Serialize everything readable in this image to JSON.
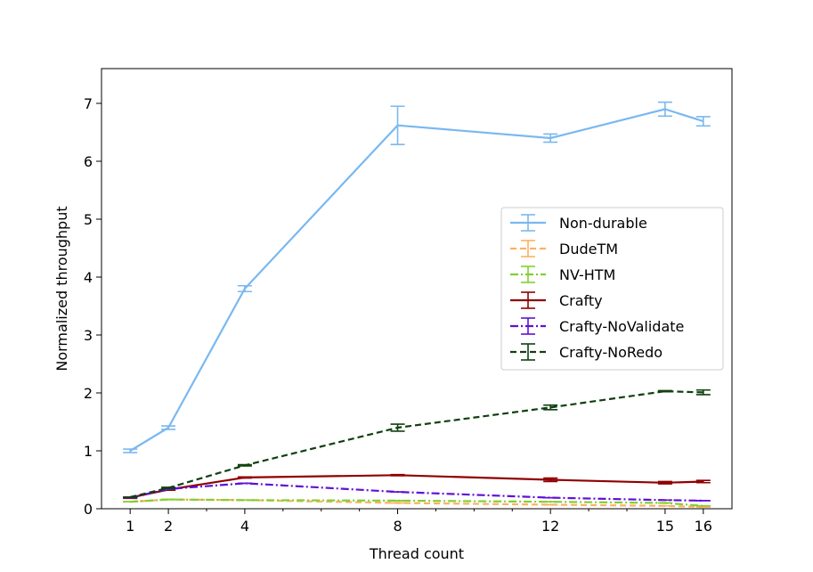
{
  "chart_data": {
    "type": "line",
    "title": "",
    "xlabel": "Thread count",
    "ylabel": "Normalized throughput",
    "x": [
      1,
      2,
      4,
      8,
      12,
      15,
      16
    ],
    "xticks": [
      1,
      2,
      4,
      8,
      12,
      15,
      16
    ],
    "yticks": [
      0,
      1,
      2,
      3,
      4,
      5,
      6,
      7
    ],
    "xlim": [
      0.25,
      16.75
    ],
    "ylim": [
      0,
      7.6
    ],
    "grid": false,
    "legend_position": "center-right",
    "series": [
      {
        "name": "Non-durable",
        "color": "#7ab8f0",
        "dash": "solid",
        "values": [
          1.0,
          1.4,
          3.8,
          6.62,
          6.4,
          6.9,
          6.69
        ],
        "errors": [
          0.03,
          0.03,
          0.05,
          0.33,
          0.07,
          0.12,
          0.08
        ]
      },
      {
        "name": "DudeTM",
        "color": "#ffb060",
        "dash": "dashed",
        "values": [
          0.12,
          0.16,
          0.15,
          0.1,
          0.07,
          0.05,
          0.03
        ],
        "errors": [
          0.0,
          0.0,
          0.0,
          0.0,
          0.0,
          0.0,
          0.0
        ]
      },
      {
        "name": "NV-HTM",
        "color": "#80d030",
        "dash": "dashdot",
        "values": [
          0.12,
          0.16,
          0.15,
          0.14,
          0.12,
          0.1,
          0.05
        ],
        "errors": [
          0.0,
          0.0,
          0.0,
          0.0,
          0.0,
          0.0,
          0.0
        ]
      },
      {
        "name": "Crafty",
        "color": "#900000",
        "dash": "solid",
        "values": [
          0.19,
          0.33,
          0.54,
          0.58,
          0.5,
          0.45,
          0.47
        ],
        "errors": [
          0.01,
          0.01,
          0.01,
          0.01,
          0.03,
          0.02,
          0.02
        ]
      },
      {
        "name": "Crafty-NoValidate",
        "color": "#6010d8",
        "dash": "dashdot",
        "values": [
          0.19,
          0.34,
          0.44,
          0.29,
          0.19,
          0.15,
          0.14
        ],
        "errors": [
          0.0,
          0.0,
          0.0,
          0.0,
          0.0,
          0.0,
          0.0
        ]
      },
      {
        "name": "Crafty-NoRedo",
        "color": "#104010",
        "dash": "dashed",
        "values": [
          0.2,
          0.36,
          0.75,
          1.4,
          1.75,
          2.03,
          2.01
        ],
        "errors": [
          0.0,
          0.01,
          0.01,
          0.06,
          0.04,
          0.01,
          0.04
        ]
      }
    ]
  }
}
